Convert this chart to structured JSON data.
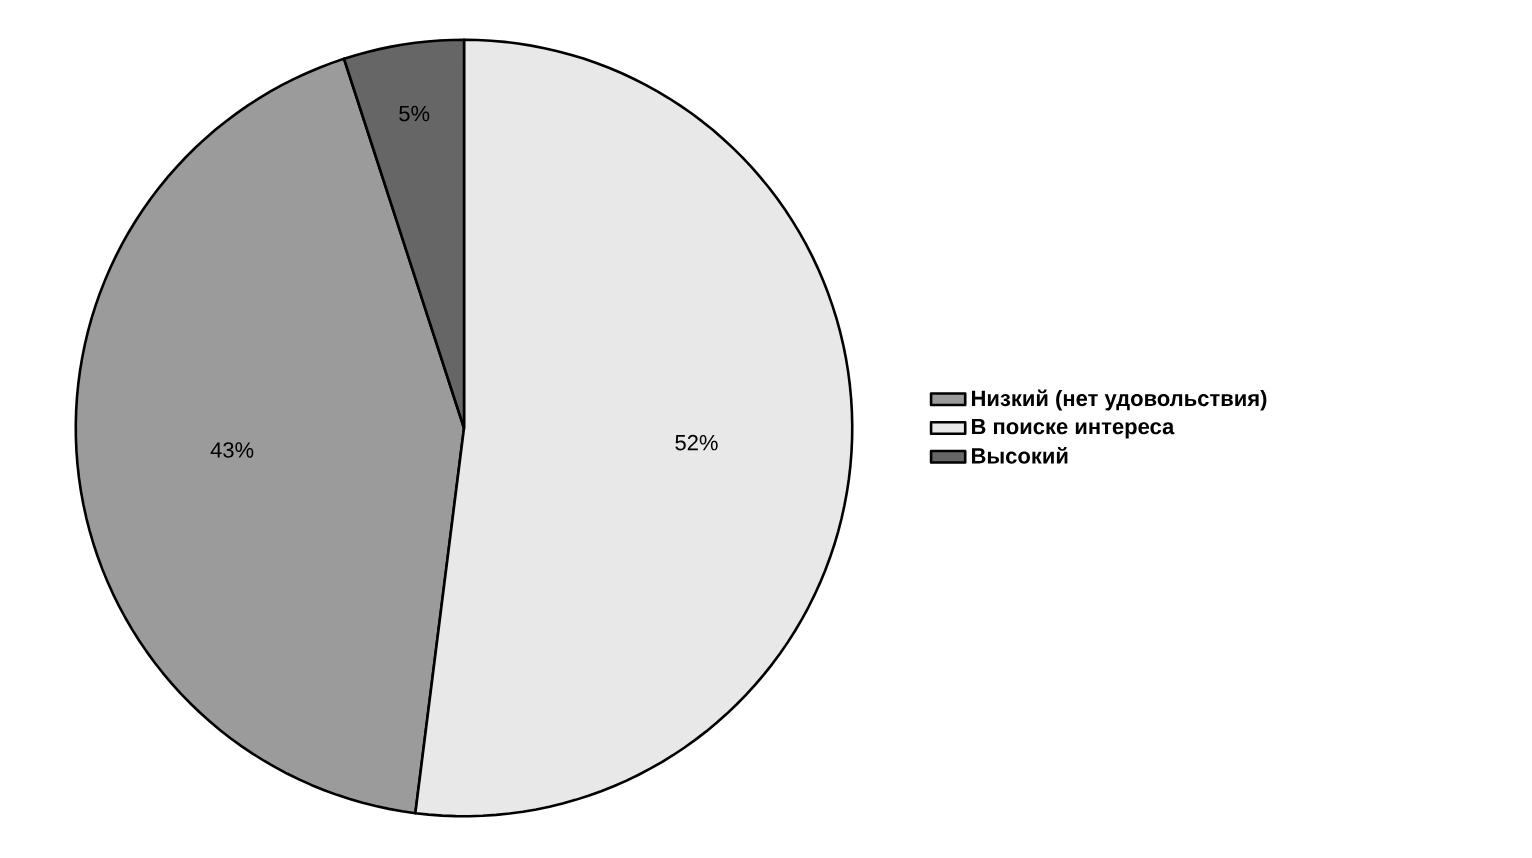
{
  "chart_data": {
    "type": "pie",
    "categories": [
      "Низкий (нет удовольствия)",
      "В поиске интереса",
      "Высокий"
    ],
    "values": [
      43,
      52,
      5
    ],
    "colors": [
      "#9b9b9b",
      "#e8e8e8",
      "#666666"
    ],
    "value_labels": [
      "43%",
      "52%",
      "5%"
    ],
    "legend": "right"
  }
}
